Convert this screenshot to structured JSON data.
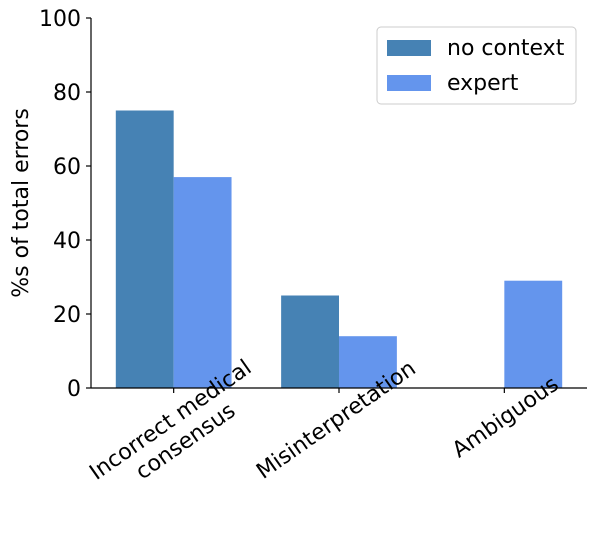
{
  "chart_data": {
    "type": "bar",
    "categories": [
      "Incorrect medical\nconsensus",
      "Misinterpretation",
      "Ambiguous"
    ],
    "series": [
      {
        "name": "no context",
        "values": [
          75,
          25,
          0
        ],
        "color": "#4682b4"
      },
      {
        "name": "expert",
        "values": [
          57,
          14,
          29
        ],
        "color": "#6495ed"
      }
    ],
    "ylabel": "%s of total errors",
    "xlabel": "",
    "ylim": [
      0,
      100
    ],
    "yticks": [
      0,
      20,
      40,
      60,
      80,
      100
    ],
    "grid": false,
    "legend_position": "top-right"
  }
}
